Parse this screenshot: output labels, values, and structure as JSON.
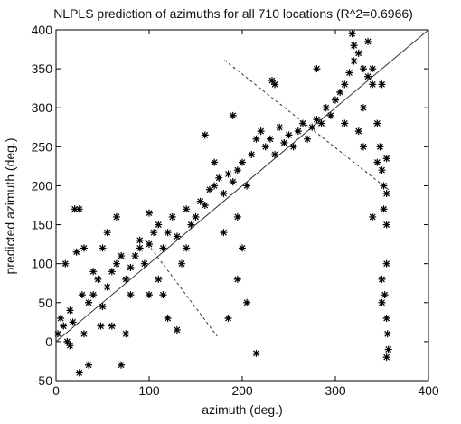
{
  "chart_data": {
    "type": "scatter",
    "title": "NLPLS prediction of azimuths for all 710 locations (R^2=0.6966)",
    "xlabel": "azimuth (deg.)",
    "ylabel": "predicted azimuth (deg.)",
    "xlim": [
      0,
      400
    ],
    "ylim": [
      -50,
      400
    ],
    "xticks": [
      0,
      100,
      200,
      300,
      400
    ],
    "yticks": [
      -50,
      0,
      50,
      100,
      150,
      200,
      250,
      300,
      350,
      400
    ],
    "grid": false,
    "marker": "*",
    "series": [
      {
        "color": "#000000",
        "x": [
          2,
          5,
          8,
          10,
          12,
          15,
          18,
          20,
          25,
          22,
          28,
          30,
          15,
          35,
          40,
          25,
          30,
          35,
          40,
          45,
          50,
          55,
          60,
          65,
          70,
          75,
          80,
          70,
          60,
          50,
          55,
          65,
          80,
          85,
          90,
          75,
          48,
          90,
          95,
          100,
          105,
          110,
          115,
          120,
          125,
          130,
          140,
          145,
          150,
          100,
          110,
          120,
          130,
          100,
          140,
          135,
          115,
          155,
          160,
          165,
          170,
          175,
          180,
          185,
          190,
          195,
          200,
          205,
          210,
          215,
          220,
          225,
          160,
          170,
          190,
          200,
          195,
          205,
          215,
          180,
          195,
          185,
          230,
          235,
          240,
          245,
          250,
          255,
          260,
          265,
          270,
          275,
          280,
          285,
          290,
          295,
          300,
          232,
          235,
          280,
          305,
          310,
          315,
          318,
          320,
          325,
          330,
          335,
          340,
          345,
          348,
          350,
          352,
          355,
          352,
          355,
          355,
          350,
          353,
          355,
          356,
          357,
          355,
          350,
          320,
          330,
          345,
          340,
          330,
          325,
          335,
          350,
          310,
          340,
          355
        ],
        "values": [
          10,
          30,
          20,
          100,
          0,
          40,
          25,
          170,
          170,
          115,
          60,
          10,
          -5,
          50,
          90,
          -40,
          120,
          -30,
          60,
          80,
          45,
          70,
          90,
          100,
          110,
          80,
          60,
          -30,
          20,
          120,
          140,
          160,
          95,
          110,
          120,
          10,
          20,
          130,
          100,
          125,
          140,
          150,
          120,
          140,
          160,
          135,
          170,
          150,
          160,
          60,
          80,
          30,
          15,
          165,
          120,
          100,
          60,
          180,
          175,
          195,
          200,
          210,
          190,
          215,
          205,
          220,
          230,
          200,
          240,
          260,
          270,
          250,
          265,
          230,
          290,
          120,
          80,
          50,
          -15,
          140,
          160,
          30,
          260,
          240,
          275,
          255,
          265,
          250,
          270,
          280,
          260,
          275,
          285,
          280,
          300,
          290,
          310,
          335,
          330,
          350,
          320,
          330,
          345,
          395,
          360,
          370,
          350,
          340,
          330,
          280,
          250,
          220,
          200,
          190,
          170,
          150,
          100,
          80,
          60,
          30,
          10,
          -10,
          -20,
          50,
          380,
          300,
          230,
          160,
          250,
          270,
          385,
          330,
          280,
          350,
          235
        ]
      }
    ],
    "reference_lines": [
      {
        "style": "solid",
        "x": [
          0,
          400
        ],
        "y": [
          0,
          400
        ]
      },
      {
        "style": "dashed",
        "x": [
          181,
          357
        ],
        "y": [
          361,
          195
        ]
      },
      {
        "style": "dashed",
        "x": [
          95,
          173
        ],
        "y": [
          131,
          7
        ]
      }
    ]
  }
}
